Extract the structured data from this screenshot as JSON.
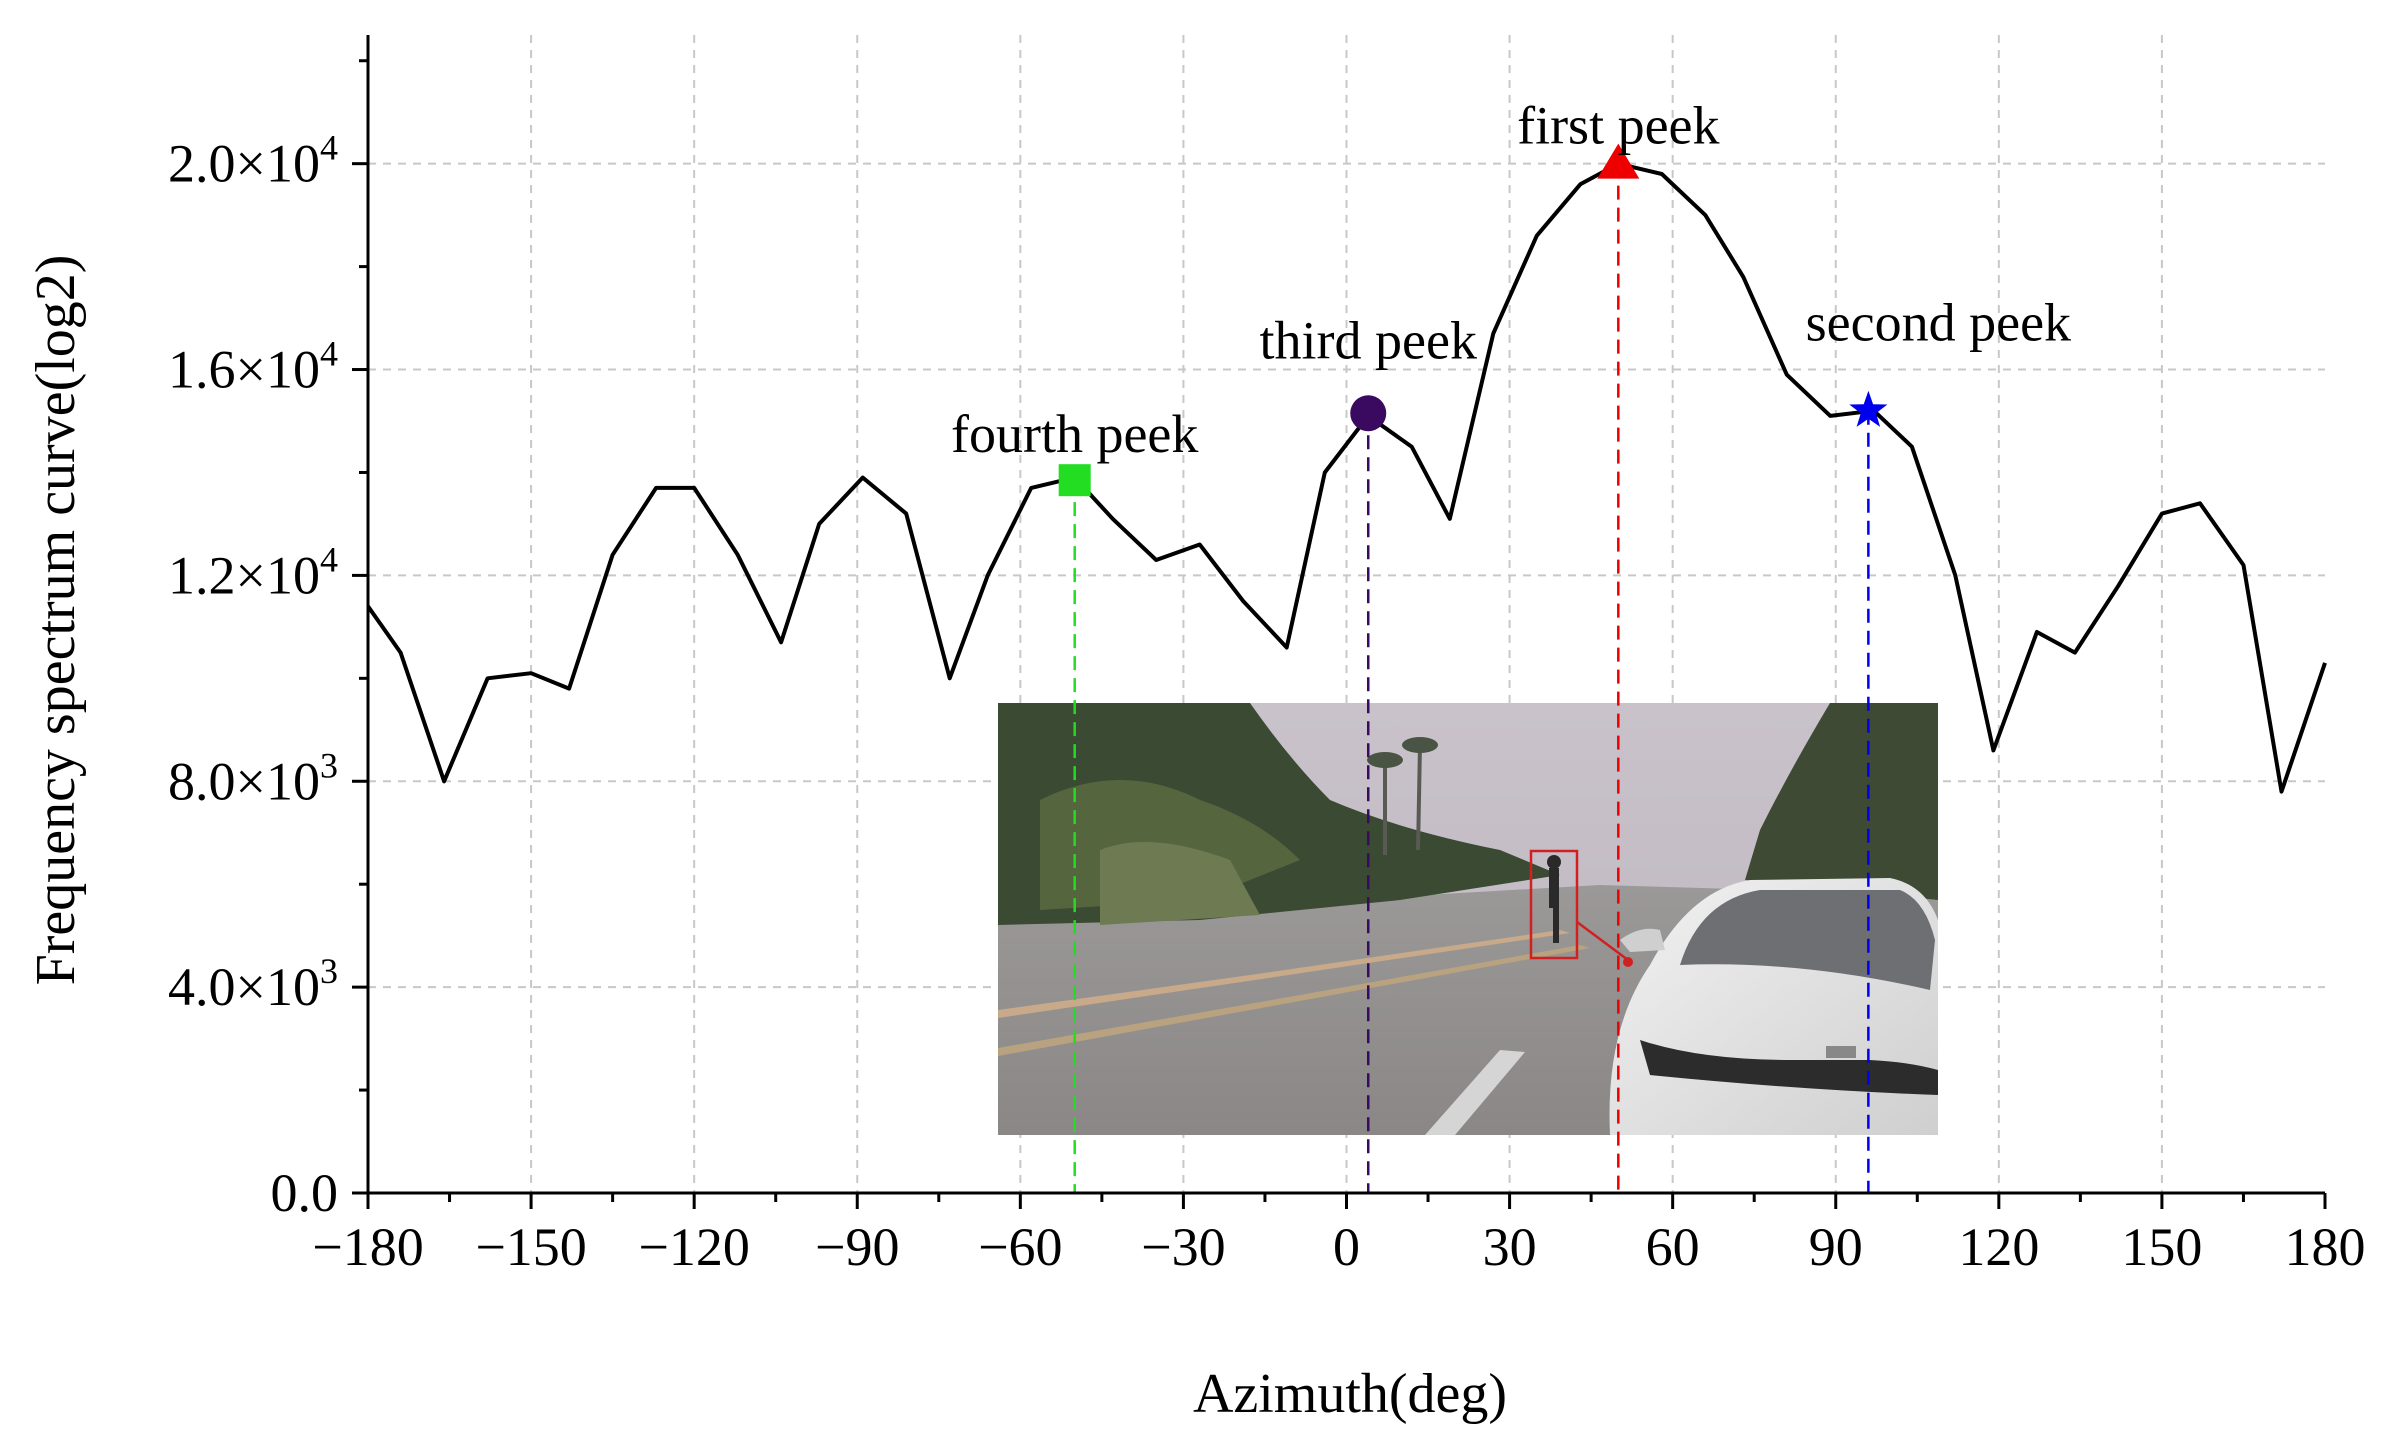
{
  "chart_data": {
    "type": "line",
    "title": "",
    "xlabel": "Azimuth(deg)",
    "ylabel": "Frequency spectrum curve(log2)",
    "xlim": [
      -180,
      180
    ],
    "ylim": [
      0,
      22500
    ],
    "grid": true,
    "x_ticks": [
      -180,
      -150,
      -120,
      -90,
      -60,
      -30,
      0,
      30,
      60,
      90,
      120,
      150,
      180
    ],
    "x_tick_labels": [
      "−180",
      "−150",
      "−120",
      "−90",
      "−60",
      "−30",
      "0",
      "30",
      "60",
      "90",
      "120",
      "150",
      "180"
    ],
    "y_ticks": [
      0,
      4000,
      8000,
      12000,
      16000,
      20000
    ],
    "y_tick_labels": [
      {
        "base": "0.0",
        "exp": ""
      },
      {
        "base": "4.0×10",
        "exp": "3"
      },
      {
        "base": "8.0×10",
        "exp": "3"
      },
      {
        "base": "1.2×10",
        "exp": "4"
      },
      {
        "base": "1.6×10",
        "exp": "4"
      },
      {
        "base": "2.0×10",
        "exp": "4"
      }
    ],
    "series": [
      {
        "color": "#000000",
        "x": [
          -180,
          -174,
          -166,
          -158,
          -150,
          -143,
          -135,
          -127,
          -120,
          -112,
          -104,
          -97,
          -89,
          -81,
          -73,
          -66,
          -58,
          -50,
          -43,
          -35,
          -27,
          -19,
          -11,
          -4,
          4,
          12,
          19,
          27,
          35,
          43,
          50,
          58,
          66,
          73,
          81,
          89,
          97,
          104,
          112,
          119,
          127,
          134,
          142,
          150,
          157,
          165,
          172,
          180
        ],
        "y": [
          11400,
          10500,
          8000,
          10000,
          10100,
          9800,
          12400,
          13700,
          13700,
          12400,
          10700,
          13000,
          13900,
          13200,
          10000,
          12000,
          13700,
          13900,
          13100,
          12300,
          12600,
          11500,
          10600,
          14000,
          15100,
          14500,
          13100,
          16700,
          18600,
          19600,
          20000,
          19800,
          19000,
          17800,
          15900,
          15100,
          15200,
          14500,
          12000,
          8600,
          10900,
          10500,
          11800,
          13200,
          13400,
          12200,
          7800,
          10300
        ]
      }
    ],
    "peaks": [
      {
        "label": "first peek",
        "x": 50,
        "y": 20000,
        "color": "#ee0000",
        "marker": "triangle"
      },
      {
        "label": "second peek",
        "x": 96,
        "y": 15200,
        "color": "#0000ee",
        "marker": "star"
      },
      {
        "label": "third peek",
        "x": 4,
        "y": 15150,
        "color": "#3a0a60",
        "marker": "circle"
      },
      {
        "label": "fourth peek",
        "x": -50,
        "y": 13850,
        "color": "#22dd22",
        "marker": "square"
      }
    ]
  }
}
